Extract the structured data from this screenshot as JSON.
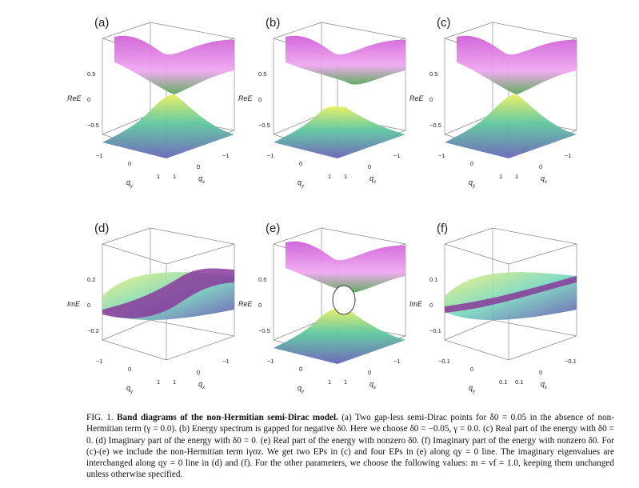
{
  "panels": [
    {
      "id": "a",
      "label": "(a)",
      "zlabel": "ReE",
      "zticks": [
        "0.5",
        "0",
        "−0.5"
      ],
      "yticks": [
        "−1",
        "0",
        "1"
      ],
      "ylabel": "q",
      "ysub": "y",
      "xticks": [
        "1",
        "0",
        "−1"
      ],
      "xlabel": "q",
      "xsub": "x",
      "kind": "gap-closed"
    },
    {
      "id": "b",
      "label": "(b)",
      "zlabel": "ReE",
      "zticks": [
        "0.5",
        "0",
        "−0.5"
      ],
      "yticks": [
        "−1",
        "0",
        "1"
      ],
      "ylabel": "q",
      "ysub": "y",
      "xticks": [
        "1",
        "0",
        "−1"
      ],
      "xlabel": "q",
      "xsub": "x",
      "kind": "gapped"
    },
    {
      "id": "c",
      "label": "(c)",
      "zlabel": "ReE",
      "zticks": [
        "0.5",
        "0",
        "−0.5"
      ],
      "yticks": [
        "−1",
        "0",
        "1"
      ],
      "ylabel": "q",
      "ysub": "y",
      "xticks": [
        "1",
        "0",
        "−1"
      ],
      "xlabel": "q",
      "xsub": "x",
      "kind": "touching"
    },
    {
      "id": "d",
      "label": "(d)",
      "zlabel": "ImE",
      "zticks": [
        "0.2",
        "0",
        "−0.2"
      ],
      "yticks": [
        "−1",
        "0",
        "1"
      ],
      "ylabel": "q",
      "ysub": "y",
      "xticks": [
        "1",
        "0",
        "−1"
      ],
      "xlabel": "q",
      "xsub": "x",
      "kind": "imag"
    },
    {
      "id": "e",
      "label": "(e)",
      "zlabel": "ReE",
      "zticks": [
        "0.5",
        "0",
        "−0.5"
      ],
      "yticks": [
        "−1",
        "0",
        "1"
      ],
      "ylabel": "q",
      "ysub": "y",
      "xticks": [
        "1",
        "0",
        "−1"
      ],
      "xlabel": "q",
      "xsub": "x",
      "kind": "ring"
    },
    {
      "id": "f",
      "label": "(f)",
      "zlabel": "ImE",
      "zticks": [
        "0.1",
        "0",
        "−0.1"
      ],
      "yticks": [
        "−0.1",
        "0",
        "0.1"
      ],
      "ylabel": "q",
      "ysub": "y",
      "xticks": [
        "0.1",
        "0",
        "−0.1"
      ],
      "xlabel": "q",
      "xsub": "x",
      "kind": "imag-flat"
    }
  ],
  "caption": {
    "fig": "FIG. 1.",
    "title": "Band diagrams of the non-Hermitian semi-Dirac model.",
    "body": "(a) Two gap-less semi-Dirac points for δ0 = 0.05 in the absence of non-Hermitian term (γ = 0.0). (b) Energy spectrum is gapped for negative δ0. Here we choose δ0 = −0.05, γ = 0.0. (c) Real part of the energy with δ0 = 0. (d) Imaginary part of the energy with δ0 = 0. (e) Real part of the energy with nonzero δ0. (f) Imaginary part of the energy with nonzero δ0. For (c)-(e) we include the non-Hermitian term iγσz. We get two EPs in (c) and four EPs in (e) along qy = 0 line. The imaginary eigenvalues are interchanged along qy = 0 line in (d) and (f). For the other parameters, we choose the following values: m = vf = 1.0, keeping them unchanged unless otherwise specified."
  }
}
